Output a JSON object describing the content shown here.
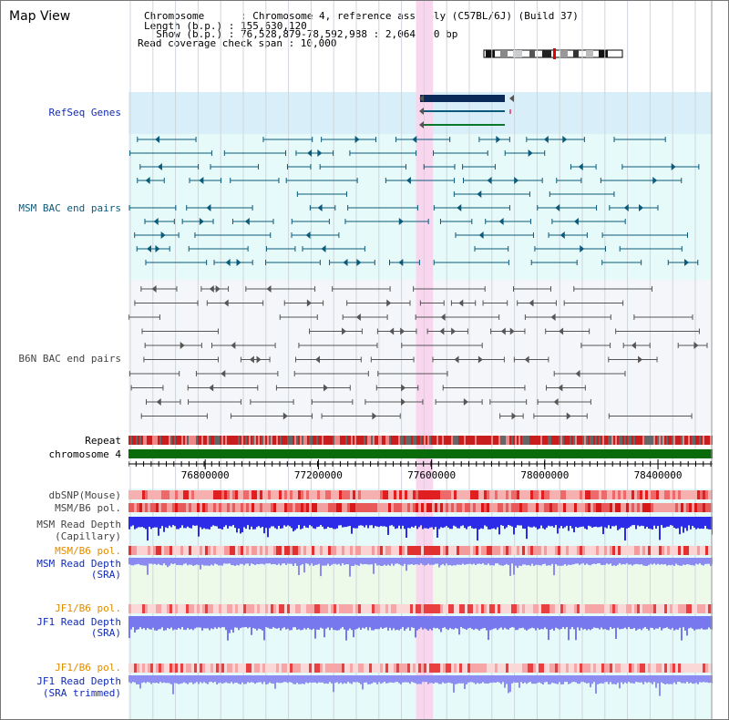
{
  "title": "Map View",
  "header": {
    "lines": [
      "Chromosome      : Chromosome 4, reference assembly (C57BL/6J) (Build 37)",
      "Length (b.p.) : 155,630,120",
      "  Show (b.p.) : 76,528,879-78,592,988 : 2,064,110 bp",
      "Read coverage check span : 10,000"
    ]
  },
  "tracks": {
    "refseq": "RefSeq Genes",
    "msm_bac": "MSM BAC end pairs",
    "b6n_bac": "B6N BAC end pairs",
    "repeat": "Repeat",
    "chromosome": "chromosome 4",
    "dbsnp": "dbSNP(Mouse)",
    "msm_b6_pol": "MSM/B6 pol.",
    "msm_read_depth_cap_1": "MSM Read Depth",
    "msm_read_depth_cap_2": "(Capillary)",
    "msm_b6_pol_2": "MSM/B6 pol.",
    "msm_read_depth_sra_1": "MSM Read Depth",
    "msm_read_depth_sra_2": "(SRA)",
    "jf1_b6_pol": "JF1/B6 pol.",
    "jf1_read_depth_sra_1": "JF1 Read Depth",
    "jf1_read_depth_sra_2": "(SRA)",
    "jf1_b6_pol_2": "JF1/B6 pol.",
    "jf1_read_depth_trim_1": "JF1 Read Depth",
    "jf1_read_depth_trim_2": "(SRA trimmed)"
  },
  "axis": {
    "ticks": [
      "76800000",
      "77200000",
      "77600000",
      "78000000",
      "78400000"
    ],
    "tick_values": [
      76800000,
      77200000,
      77600000,
      78000000,
      78400000
    ],
    "start": 76528879,
    "end": 78592988,
    "highlight_start": 77545000,
    "highlight_end": 77605000
  },
  "colors": {
    "refseq_bg": "#d8eef8",
    "track_bg": "#e6fafa",
    "highlight": "#f7d6ee",
    "msm_feature": "#0c5a7a",
    "b6n_feature": "#555555",
    "chromosome": "#0a6b0a",
    "depth": "#3a3ae6",
    "label_blue": "#0f2bb8",
    "label_orange": "#e08c00"
  }
}
